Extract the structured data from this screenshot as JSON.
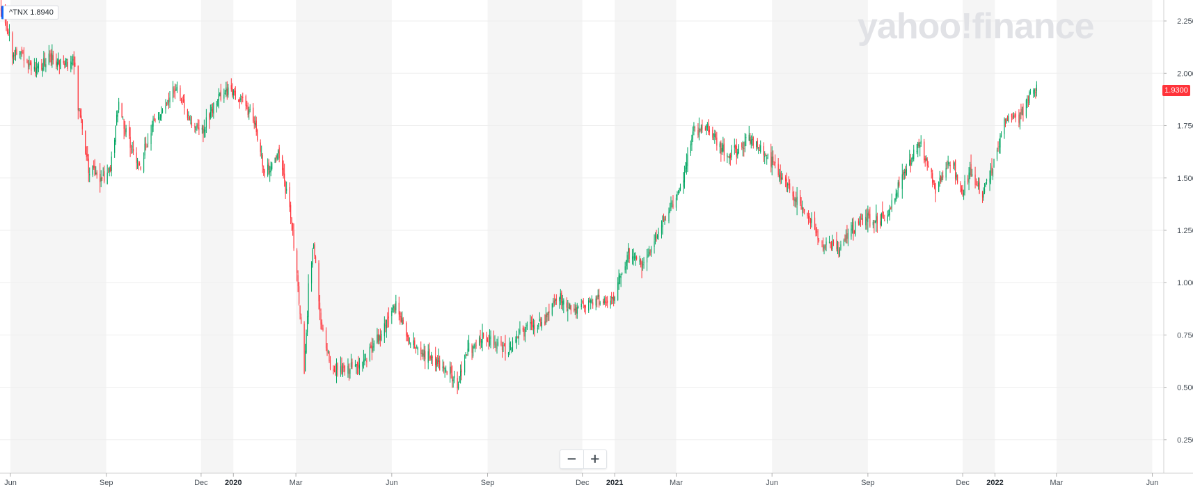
{
  "ticker": {
    "symbol": "^TNX",
    "value": "1.8940"
  },
  "watermark": "yahoo!finance",
  "zoom": {
    "minus": "−",
    "plus": "+"
  },
  "last_price": "1.9300",
  "colors": {
    "up": "#00a561",
    "down": "#ff333a",
    "band": "#f5f5f5",
    "grid": "#eeeeee",
    "axis_text": "#464e56",
    "last_price_bg": "#ff333a",
    "ticker_accent": "#0f69ff"
  },
  "chart_data": {
    "type": "candlestick",
    "symbol": "^TNX",
    "ylim": [
      0.09,
      2.35
    ],
    "y_ticks": [
      "2.2500",
      "2.0000",
      "1.7500",
      "1.5000",
      "1.2500",
      "1.0000",
      "0.7500",
      "0.5000",
      "0.2500"
    ],
    "y_tick_values": [
      2.25,
      2.0,
      1.75,
      1.5,
      1.25,
      1.0,
      0.75,
      0.5,
      0.25
    ],
    "x_range": [
      "2019-05-22",
      "2022-06-12"
    ],
    "x_ticks": [
      {
        "label": "Jun",
        "date": "2019-06-01"
      },
      {
        "label": "Sep",
        "date": "2019-09-01"
      },
      {
        "label": "Dec",
        "date": "2019-12-01"
      },
      {
        "label": "2020",
        "date": "2020-01-01",
        "bold": true
      },
      {
        "label": "Mar",
        "date": "2020-03-01"
      },
      {
        "label": "Jun",
        "date": "2020-06-01"
      },
      {
        "label": "Sep",
        "date": "2020-09-01"
      },
      {
        "label": "Dec",
        "date": "2020-12-01"
      },
      {
        "label": "2021",
        "date": "2021-01-01",
        "bold": true
      },
      {
        "label": "Mar",
        "date": "2021-03-01"
      },
      {
        "label": "Jun",
        "date": "2021-06-01"
      },
      {
        "label": "Sep",
        "date": "2021-09-01"
      },
      {
        "label": "Dec",
        "date": "2021-12-01"
      },
      {
        "label": "2022",
        "date": "2022-01-01",
        "bold": true
      },
      {
        "label": "Mar",
        "date": "2022-03-01"
      },
      {
        "label": "Jun",
        "date": "2022-06-01"
      }
    ],
    "shaded_months": [
      [
        "2019-06-01",
        "2019-09-01"
      ],
      [
        "2019-12-01",
        "2020-01-01"
      ],
      [
        "2020-03-01",
        "2020-06-01"
      ],
      [
        "2020-09-01",
        "2020-12-01"
      ],
      [
        "2021-01-01",
        "2021-03-01"
      ],
      [
        "2021-06-01",
        "2021-09-01"
      ],
      [
        "2021-12-01",
        "2022-01-01"
      ],
      [
        "2022-03-01",
        "2022-06-01"
      ]
    ],
    "close_path": [
      [
        "2019-05-23",
        2.31
      ],
      [
        "2019-05-30",
        2.21
      ],
      [
        "2019-06-03",
        2.1
      ],
      [
        "2019-06-14",
        2.09
      ],
      [
        "2019-06-25",
        2.0
      ],
      [
        "2019-07-10",
        2.08
      ],
      [
        "2019-07-22",
        2.05
      ],
      [
        "2019-08-01",
        2.05
      ],
      [
        "2019-08-05",
        1.85
      ],
      [
        "2019-08-15",
        1.55
      ],
      [
        "2019-08-23",
        1.53
      ],
      [
        "2019-08-28",
        1.48
      ],
      [
        "2019-09-05",
        1.55
      ],
      [
        "2019-09-13",
        1.86
      ],
      [
        "2019-09-20",
        1.72
      ],
      [
        "2019-10-03",
        1.55
      ],
      [
        "2019-10-15",
        1.75
      ],
      [
        "2019-11-08",
        1.94
      ],
      [
        "2019-11-20",
        1.77
      ],
      [
        "2019-12-03",
        1.73
      ],
      [
        "2019-12-16",
        1.88
      ],
      [
        "2019-12-27",
        1.92
      ],
      [
        "2020-01-08",
        1.88
      ],
      [
        "2020-01-20",
        1.78
      ],
      [
        "2020-01-31",
        1.51
      ],
      [
        "2020-02-12",
        1.62
      ],
      [
        "2020-02-24",
        1.37
      ],
      [
        "2020-03-03",
        1.0
      ],
      [
        "2020-03-09",
        0.54
      ],
      [
        "2020-03-13",
        0.98
      ],
      [
        "2020-03-18",
        1.18
      ],
      [
        "2020-03-25",
        0.82
      ],
      [
        "2020-04-03",
        0.6
      ],
      [
        "2020-04-21",
        0.57
      ],
      [
        "2020-05-12",
        0.67
      ],
      [
        "2020-06-05",
        0.89
      ],
      [
        "2020-06-16",
        0.72
      ],
      [
        "2020-07-07",
        0.64
      ],
      [
        "2020-07-20",
        0.6
      ],
      [
        "2020-08-04",
        0.52
      ],
      [
        "2020-08-12",
        0.67
      ],
      [
        "2020-08-27",
        0.74
      ],
      [
        "2020-09-20",
        0.68
      ],
      [
        "2020-10-08",
        0.78
      ],
      [
        "2020-10-26",
        0.82
      ],
      [
        "2020-11-09",
        0.95
      ],
      [
        "2020-11-23",
        0.86
      ],
      [
        "2020-12-08",
        0.91
      ],
      [
        "2020-12-31",
        0.92
      ],
      [
        "2021-01-06",
        1.04
      ],
      [
        "2021-01-14",
        1.13
      ],
      [
        "2021-01-29",
        1.08
      ],
      [
        "2021-02-16",
        1.3
      ],
      [
        "2021-03-02",
        1.4
      ],
      [
        "2021-03-18",
        1.72
      ],
      [
        "2021-03-31",
        1.74
      ],
      [
        "2021-04-19",
        1.6
      ],
      [
        "2021-05-12",
        1.69
      ],
      [
        "2021-06-04",
        1.56
      ],
      [
        "2021-06-18",
        1.44
      ],
      [
        "2021-07-08",
        1.29
      ],
      [
        "2021-07-20",
        1.18
      ],
      [
        "2021-08-04",
        1.17
      ],
      [
        "2021-08-17",
        1.26
      ],
      [
        "2021-09-01",
        1.3
      ],
      [
        "2021-09-20",
        1.31
      ],
      [
        "2021-10-01",
        1.48
      ],
      [
        "2021-10-21",
        1.67
      ],
      [
        "2021-11-05",
        1.45
      ],
      [
        "2021-11-20",
        1.6
      ],
      [
        "2021-11-30",
        1.42
      ],
      [
        "2021-12-08",
        1.52
      ],
      [
        "2021-12-20",
        1.41
      ],
      [
        "2022-01-03",
        1.63
      ],
      [
        "2022-01-10",
        1.78
      ],
      [
        "2022-01-24",
        1.78
      ],
      [
        "2022-02-04",
        1.92
      ],
      [
        "2022-02-10",
        1.93
      ]
    ]
  }
}
